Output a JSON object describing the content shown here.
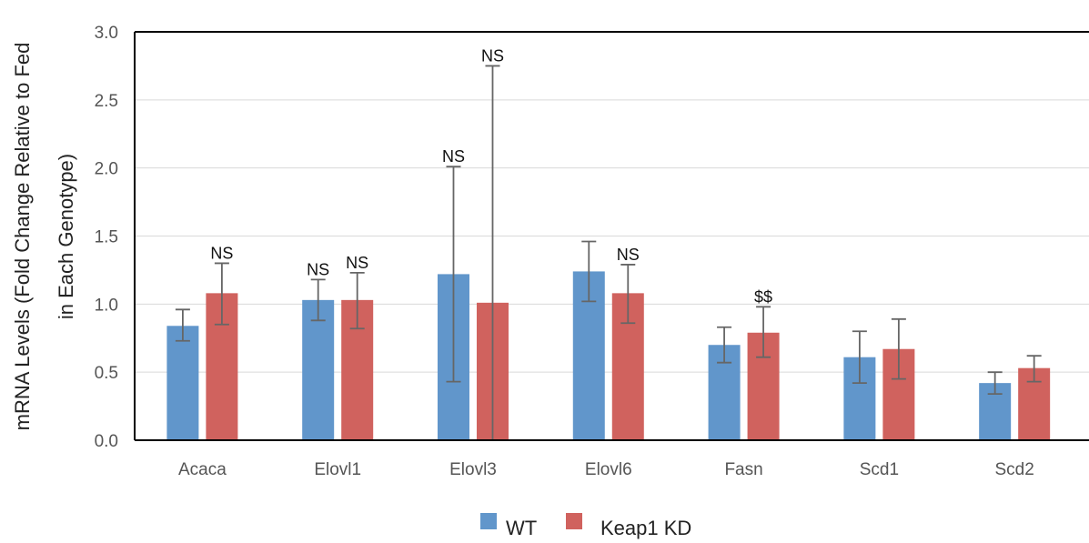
{
  "chart_data": {
    "type": "bar",
    "title": "",
    "xlabel": "",
    "ylabel_lines": [
      "mRNA Levels (Fold Change Relative to Fed",
      "in Each Genotype)"
    ],
    "ylim": [
      0,
      3.0
    ],
    "yticks": [
      "0.0",
      "0.5",
      "1.0",
      "1.5",
      "2.0",
      "2.5",
      "3.0"
    ],
    "grid": true,
    "legend_position": "bottom",
    "categories": [
      "Acaca",
      "Elovl1",
      "Elovl3",
      "Elovl6",
      "Fasn",
      "Scd1",
      "Scd2"
    ],
    "series": [
      {
        "name": "WT",
        "color": "#6196cb",
        "values": [
          0.84,
          1.03,
          1.22,
          1.24,
          0.7,
          0.61,
          0.42
        ],
        "error_low": [
          0.73,
          0.88,
          0.43,
          1.02,
          0.57,
          0.42,
          0.34
        ],
        "error_high": [
          0.96,
          1.18,
          2.01,
          1.46,
          0.83,
          0.8,
          0.5
        ],
        "annotations": [
          "",
          "NS",
          "NS",
          "",
          "",
          "",
          ""
        ]
      },
      {
        "name": "Keap1 KD",
        "color": "#d0625e",
        "values": [
          1.08,
          1.03,
          1.01,
          1.08,
          0.79,
          0.67,
          0.53
        ],
        "error_low": [
          0.85,
          0.82,
          0.0,
          0.86,
          0.61,
          0.45,
          0.43
        ],
        "error_high": [
          1.3,
          1.23,
          2.75,
          1.29,
          0.98,
          0.89,
          0.62
        ],
        "annotations": [
          "NS",
          "NS",
          "NS",
          "NS",
          "$$",
          "",
          ""
        ]
      }
    ]
  }
}
